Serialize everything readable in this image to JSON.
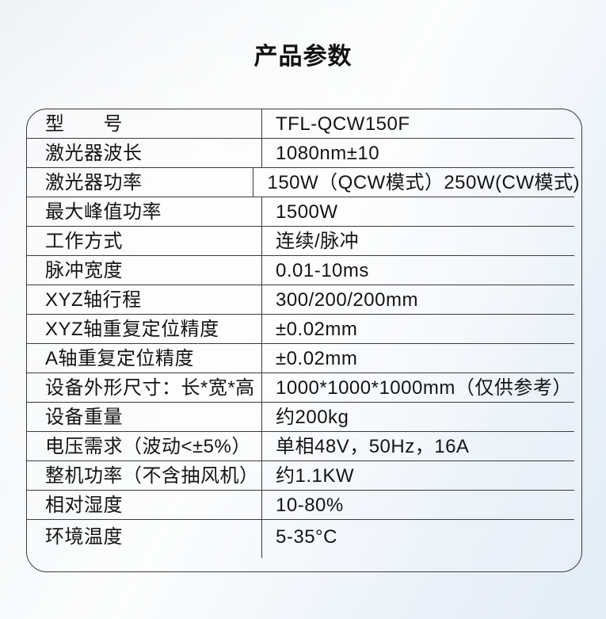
{
  "page": {
    "title": "产品参数"
  },
  "colors": {
    "border": "#3b3b3b",
    "text": "#141414",
    "background_tint": "#e9f1fa"
  },
  "table": {
    "rows": [
      {
        "label": "型　　号",
        "value": "TFL-QCW150F"
      },
      {
        "label": "激光器波长",
        "value": "1080nm±10"
      },
      {
        "label": "激光器功率",
        "value": "150W（QCW模式）250W(CW模式)"
      },
      {
        "label": "最大峰值功率",
        "value": "1500W"
      },
      {
        "label": "工作方式",
        "value": "连续/脉冲"
      },
      {
        "label": "脉冲宽度",
        "value": "0.01-10ms"
      },
      {
        "label": "XYZ轴行程",
        "value": "300/200/200mm"
      },
      {
        "label": "XYZ轴重复定位精度",
        "value": "±0.02mm"
      },
      {
        "label": "A轴重复定位精度",
        "value": "±0.02mm"
      },
      {
        "label": "设备外形尺寸：长*宽*高",
        "value": "1000*1000*1000mm（仅供参考）"
      },
      {
        "label": "设备重量",
        "value": "约200kg"
      },
      {
        "label": "电压需求（波动<±5%）",
        "value": "单相48V，50Hz，16A"
      },
      {
        "label": "整机功率（不含抽风机）",
        "value": "约1.1KW"
      },
      {
        "label": "相对湿度",
        "value": "10-80%"
      },
      {
        "label": "环境温度",
        "value": "5-35°C"
      }
    ]
  }
}
